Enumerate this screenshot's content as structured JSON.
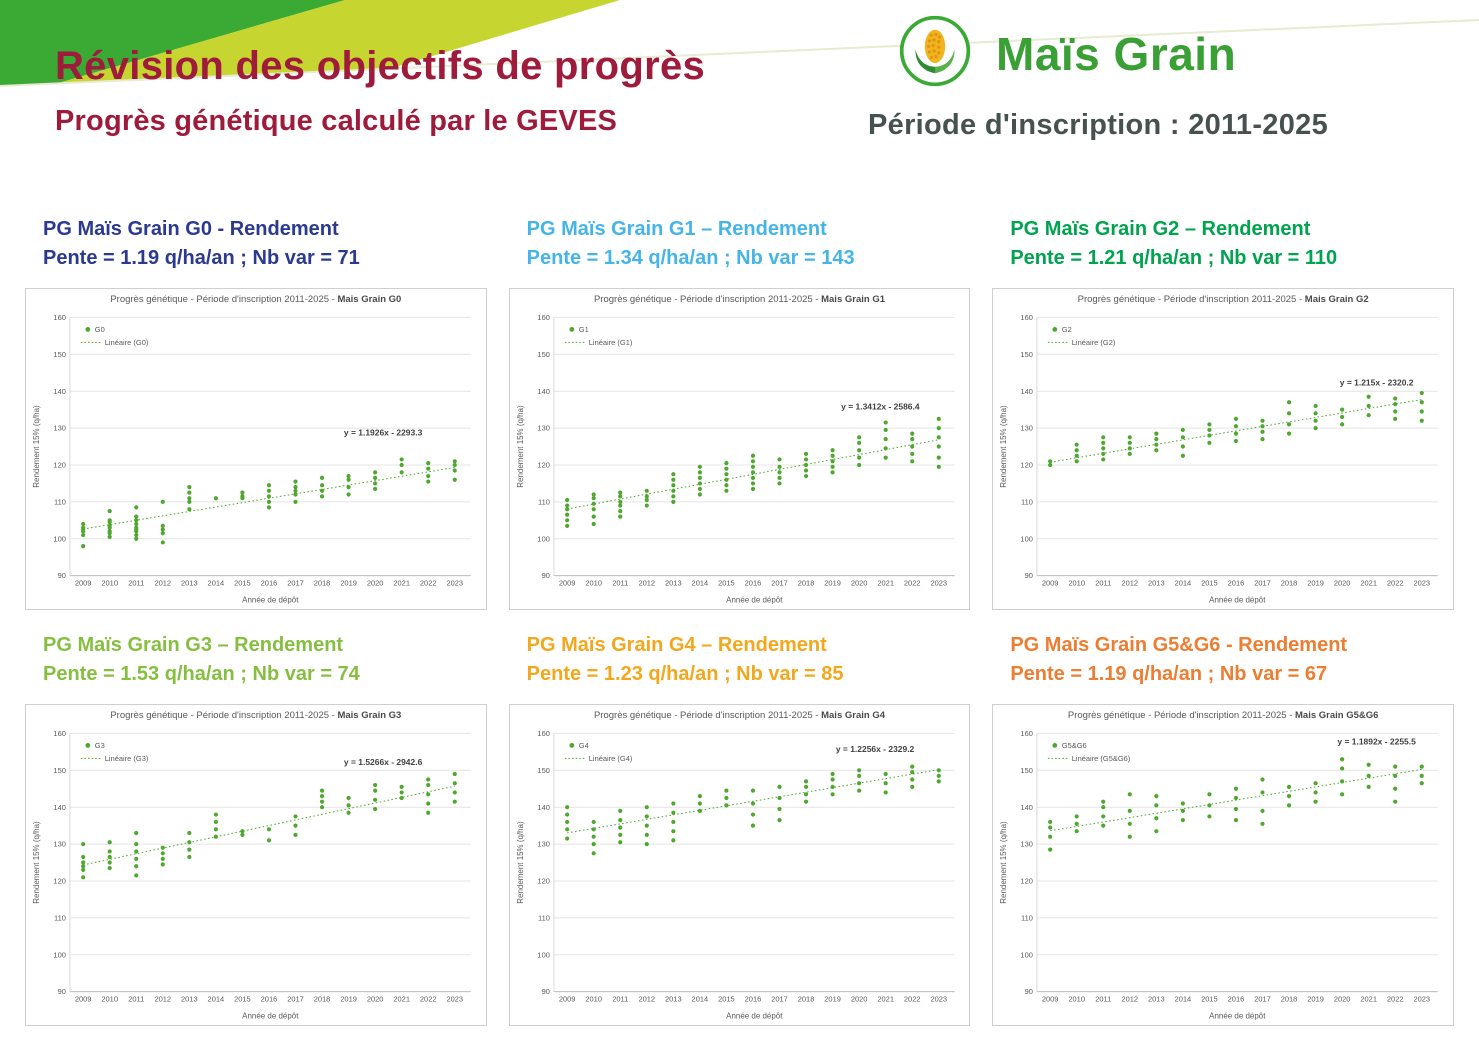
{
  "header": {
    "title": "Révision des objectifs de progrès",
    "subtitle": "Progrès génétique calculé par le GEVES",
    "brand": "Maïs Grain",
    "period": "Période d'inscription : 2011-2025",
    "logo_icon": "corn-icon",
    "colors": {
      "title_red": "#9e1b3b",
      "brand_green": "#3aa035",
      "band_green": "#3aaa35",
      "band_yellow": "#c7d530",
      "period_gray": "#47514f"
    }
  },
  "chart_data": [
    {
      "type": "scatter",
      "group": "G0",
      "heading": "PG Maïs Grain G0 - Rendement",
      "stats": "Pente = 1.19 q/ha/an ; Nb var = 71",
      "heading_color": "#2b3990",
      "panel_title_prefix": "Progrès génétique - Période d'inscription 2011-2025 - ",
      "panel_title_bold": "Mais Grain G0",
      "legend_point_label": "G0",
      "legend_line_label": "Linéaire (G0)",
      "equation": "y = 1.1926x - 2293.3",
      "eq_pos": {
        "x": 2020.3,
        "y": 128
      },
      "trend": {
        "slope": 1.1926,
        "intercept": -2293.3
      },
      "xlabel": "Année de dépôt",
      "ylabel": "Rendement 15% (q/ha)",
      "ylim": [
        90,
        160
      ],
      "xlim": [
        2008.5,
        2023.6
      ],
      "years": [
        2009,
        2010,
        2011,
        2012,
        2013,
        2014,
        2015,
        2016,
        2017,
        2018,
        2019,
        2020,
        2021,
        2022,
        2023
      ],
      "point_color": "#4ea72e",
      "points": {
        "2009": [
          98,
          101,
          102,
          102.5,
          103,
          104
        ],
        "2010": [
          100.5,
          101.5,
          102,
          103,
          103.5,
          104.5,
          105,
          107.5
        ],
        "2011": [
          100,
          101,
          102,
          102.5,
          103,
          104,
          105,
          106,
          108.5
        ],
        "2012": [
          99,
          101.5,
          102.5,
          103.5,
          110
        ],
        "2013": [
          108,
          110,
          111,
          112.5,
          114
        ],
        "2014": [
          111
        ],
        "2015": [
          111,
          111.5,
          112.5
        ],
        "2016": [
          108.5,
          110,
          111.5,
          113,
          114.5
        ],
        "2017": [
          110,
          112,
          113,
          114,
          115.5
        ],
        "2018": [
          111.5,
          113,
          114.5,
          116.5
        ],
        "2019": [
          112,
          114,
          116,
          117
        ],
        "2020": [
          113.5,
          115,
          116.5,
          118
        ],
        "2021": [
          118,
          120,
          121.5
        ],
        "2022": [
          115.5,
          117,
          119,
          120.5
        ],
        "2023": [
          116,
          118.5,
          120,
          121
        ]
      }
    },
    {
      "type": "scatter",
      "group": "G1",
      "heading": "PG Maïs Grain G1 – Rendement",
      "stats": "Pente = 1.34 q/ha/an ; Nb var = 143",
      "heading_color": "#45b5e8",
      "panel_title_prefix": "Progrès génétique - Période d'inscription 2011-2025 - ",
      "panel_title_bold": "Mais Grain G1",
      "legend_point_label": "G1",
      "legend_line_label": "Linéaire (G1)",
      "equation": "y = 1.3412x - 2586.4",
      "eq_pos": {
        "x": 2020.8,
        "y": 135
      },
      "trend": {
        "slope": 1.3412,
        "intercept": -2586.4
      },
      "xlabel": "Année de dépôt",
      "ylabel": "Rendement 15% (q/ha)",
      "ylim": [
        90,
        160
      ],
      "xlim": [
        2008.5,
        2023.6
      ],
      "years": [
        2009,
        2010,
        2011,
        2012,
        2013,
        2014,
        2015,
        2016,
        2017,
        2018,
        2019,
        2020,
        2021,
        2022,
        2023
      ],
      "point_color": "#4ea72e",
      "points": {
        "2009": [
          103.5,
          105,
          106.5,
          108,
          109,
          110.5
        ],
        "2010": [
          104,
          106,
          108,
          109.5,
          111,
          112
        ],
        "2011": [
          106,
          107.5,
          109,
          110,
          111.5,
          112.5
        ],
        "2012": [
          109,
          110.5,
          111.5,
          113
        ],
        "2013": [
          110,
          111.5,
          113,
          114.5,
          116,
          117.5
        ],
        "2014": [
          112,
          113.5,
          115,
          116.5,
          118,
          119.5
        ],
        "2015": [
          113,
          114.5,
          116,
          117.5,
          119,
          120.5
        ],
        "2016": [
          113.5,
          115,
          116.5,
          118,
          119.5,
          121,
          122.5
        ],
        "2017": [
          115,
          116.5,
          118,
          119.5,
          121.5
        ],
        "2018": [
          117,
          118.5,
          120,
          121.5,
          123
        ],
        "2019": [
          118,
          119.5,
          121,
          122.5,
          124
        ],
        "2020": [
          120,
          122,
          124,
          126,
          127.5
        ],
        "2021": [
          122,
          124.5,
          127,
          129.5,
          131.5
        ],
        "2022": [
          121,
          123,
          125,
          127,
          128.5
        ],
        "2023": [
          119.5,
          122,
          125,
          127.5,
          130,
          132.5
        ]
      }
    },
    {
      "type": "scatter",
      "group": "G2",
      "heading": "PG Maïs Grain G2 – Rendement",
      "stats": "Pente = 1.21 q/ha/an ; Nb var = 110",
      "heading_color": "#00a34e",
      "panel_title_prefix": "Progrès génétique - Période d'inscription 2011-2025 - ",
      "panel_title_bold": "Mais Grain G2",
      "legend_point_label": "G2",
      "legend_line_label": "Linéaire (G2)",
      "equation": "y = 1.215x - 2320.2",
      "eq_pos": {
        "x": 2021.3,
        "y": 141.5
      },
      "trend": {
        "slope": 1.215,
        "intercept": -2320.2
      },
      "xlabel": "Année de dépôt",
      "ylabel": "Rendement 15% (q/ha)",
      "ylim": [
        90,
        160
      ],
      "xlim": [
        2008.5,
        2023.6
      ],
      "years": [
        2009,
        2010,
        2011,
        2012,
        2013,
        2014,
        2015,
        2016,
        2017,
        2018,
        2019,
        2020,
        2021,
        2022,
        2023
      ],
      "point_color": "#4ea72e",
      "points": {
        "2009": [
          120,
          121
        ],
        "2010": [
          121,
          122.5,
          124,
          125.5
        ],
        "2011": [
          121.5,
          123,
          124.5,
          126,
          127.5
        ],
        "2012": [
          123,
          124.5,
          126,
          127.5
        ],
        "2013": [
          124,
          125.5,
          127,
          128.5
        ],
        "2014": [
          122.5,
          125,
          127.5,
          129.5
        ],
        "2015": [
          126,
          128,
          129.5,
          131
        ],
        "2016": [
          126.5,
          128.5,
          130.5,
          132.5
        ],
        "2017": [
          127,
          129,
          130.5,
          132
        ],
        "2018": [
          128.5,
          131,
          134,
          137
        ],
        "2019": [
          130,
          132,
          134,
          136
        ],
        "2020": [
          131,
          133,
          135
        ],
        "2021": [
          133.5,
          136,
          138.5
        ],
        "2022": [
          132.5,
          134.5,
          136.5,
          138
        ],
        "2023": [
          132,
          134.5,
          137,
          139.5
        ]
      }
    },
    {
      "type": "scatter",
      "group": "G3",
      "heading": "PG Maïs Grain G3 – Rendement",
      "stats": "Pente =  1.53 q/ha/an ; Nb var = 74",
      "heading_color": "#86bf40",
      "panel_title_prefix": "Progrès génétique - Période d'inscription 2011-2025 - ",
      "panel_title_bold": "Mais Grain G3",
      "legend_point_label": "G3",
      "legend_line_label": "Linéaire (G3)",
      "equation": "y = 1.5266x - 2942.6",
      "eq_pos": {
        "x": 2020.3,
        "y": 151.5
      },
      "trend": {
        "slope": 1.5266,
        "intercept": -2942.6
      },
      "xlabel": "Année de dépôt",
      "ylabel": "Rendement 15% (q/ha)",
      "ylim": [
        90,
        160
      ],
      "xlim": [
        2008.5,
        2023.6
      ],
      "years": [
        2009,
        2010,
        2011,
        2012,
        2013,
        2014,
        2015,
        2016,
        2017,
        2018,
        2019,
        2020,
        2021,
        2022,
        2023
      ],
      "point_color": "#4ea72e",
      "points": {
        "2009": [
          121,
          123,
          124,
          125,
          126.5,
          130
        ],
        "2010": [
          123.5,
          125,
          126.5,
          128,
          130.5
        ],
        "2011": [
          121.5,
          124,
          126,
          128,
          130,
          133
        ],
        "2012": [
          124.5,
          126,
          127.5,
          129
        ],
        "2013": [
          126.5,
          128.5,
          130.5,
          133
        ],
        "2014": [
          132,
          134,
          136,
          138
        ],
        "2015": [
          132.5,
          133.5
        ],
        "2016": [
          131,
          134
        ],
        "2017": [
          132.5,
          135,
          137.5
        ],
        "2018": [
          140,
          141.5,
          143,
          144.5
        ],
        "2019": [
          138.5,
          140.5,
          142.5
        ],
        "2020": [
          139.5,
          142,
          144.5,
          146
        ],
        "2021": [
          142.5,
          144,
          145.5
        ],
        "2022": [
          138.5,
          141,
          143.5,
          146,
          147.5
        ],
        "2023": [
          141.5,
          144,
          146.5,
          149
        ]
      }
    },
    {
      "type": "scatter",
      "group": "G4",
      "heading": "PG Maïs Grain G4 – Rendement",
      "stats": "Pente = 1.23 q/ha/an ; Nb var = 85",
      "heading_color": "#f3a71d",
      "panel_title_prefix": "Progrès génétique - Période d'inscription 2011-2025 - ",
      "panel_title_bold": "Mais Grain G4",
      "legend_point_label": "G4",
      "legend_line_label": "Linéaire (G4)",
      "equation": "y = 1.2256x - 2329.2",
      "eq_pos": {
        "x": 2020.6,
        "y": 155
      },
      "trend": {
        "slope": 1.2256,
        "intercept": -2329.2
      },
      "xlabel": "Année de dépôt",
      "ylabel": "Rendement 15% (q/ha)",
      "ylim": [
        90,
        160
      ],
      "xlim": [
        2008.5,
        2023.6
      ],
      "years": [
        2009,
        2010,
        2011,
        2012,
        2013,
        2014,
        2015,
        2016,
        2017,
        2018,
        2019,
        2020,
        2021,
        2022,
        2023
      ],
      "point_color": "#4ea72e",
      "points": {
        "2009": [
          131.5,
          134,
          136,
          138,
          140
        ],
        "2010": [
          127.5,
          130,
          132,
          134,
          136
        ],
        "2011": [
          130.5,
          132.5,
          134.5,
          136.5,
          139
        ],
        "2012": [
          130,
          132.5,
          135,
          137.5,
          140
        ],
        "2013": [
          131,
          133.5,
          136,
          138.5,
          141
        ],
        "2014": [
          139,
          141,
          143
        ],
        "2015": [
          140.5,
          142.5,
          144.5
        ],
        "2016": [
          135,
          138,
          141,
          144.5
        ],
        "2017": [
          136.5,
          139.5,
          142.5,
          145.5
        ],
        "2018": [
          141.5,
          143.5,
          145.5,
          147
        ],
        "2019": [
          143.5,
          145.5,
          147.5,
          149
        ],
        "2020": [
          144.5,
          146.5,
          148.5,
          150
        ],
        "2021": [
          144,
          146.5,
          149
        ],
        "2022": [
          145.5,
          147.5,
          149.5,
          151
        ],
        "2023": [
          147,
          148.5,
          150
        ]
      }
    },
    {
      "type": "scatter",
      "group": "G5&G6",
      "heading": "PG Maïs Grain G5&G6 - Rendement",
      "stats": "Pente =  1.19 q/ha/an ; Nb var = 67",
      "heading_color": "#ed7d31",
      "panel_title_prefix": "Progrès génétique - Période d'inscription 2011-2025 - ",
      "panel_title_bold": "Mais Grain G5&G6",
      "legend_point_label": "G5&G6",
      "legend_line_label": "Linéaire (G5&G6)",
      "equation": "y = 1.1892x - 2255.5",
      "eq_pos": {
        "x": 2021.3,
        "y": 157
      },
      "trend": {
        "slope": 1.1892,
        "intercept": -2255.5
      },
      "xlabel": "Année de dépôt",
      "ylabel": "Rendement 15% (q/ha)",
      "ylim": [
        90,
        160
      ],
      "xlim": [
        2008.5,
        2023.6
      ],
      "years": [
        2009,
        2010,
        2011,
        2012,
        2013,
        2014,
        2015,
        2016,
        2017,
        2018,
        2019,
        2020,
        2021,
        2022,
        2023
      ],
      "point_color": "#4ea72e",
      "points": {
        "2009": [
          128.5,
          132,
          134.5,
          136
        ],
        "2010": [
          133.5,
          135.5,
          137.5
        ],
        "2011": [
          135,
          137.5,
          140,
          141.5
        ],
        "2012": [
          132,
          135.5,
          139,
          143.5
        ],
        "2013": [
          133.5,
          137,
          140.5,
          143
        ],
        "2014": [
          136.5,
          139,
          141
        ],
        "2015": [
          137.5,
          140.5,
          143.5
        ],
        "2016": [
          136.5,
          139.5,
          142.5,
          145
        ],
        "2017": [
          135.5,
          139,
          144,
          147.5
        ],
        "2018": [
          140.5,
          143,
          145.5
        ],
        "2019": [
          141.5,
          144,
          146.5
        ],
        "2020": [
          143.5,
          147,
          150.5,
          153
        ],
        "2021": [
          145.5,
          148.5,
          151.5
        ],
        "2022": [
          141.5,
          145,
          148.5,
          151
        ],
        "2023": [
          146.5,
          148.5,
          151
        ]
      }
    }
  ]
}
